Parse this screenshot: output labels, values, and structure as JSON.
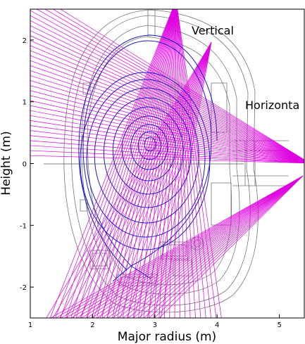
{
  "figure": {
    "xlabel": "Major radius (m)",
    "ylabel": "Height (m)",
    "xticks": [
      "1",
      "2",
      "3",
      "4",
      "5"
    ],
    "yticks": [
      "2",
      "1",
      "0",
      "-1",
      "-2"
    ],
    "labels": {
      "vertical": "Vertical",
      "horizontal": "Horizonta"
    },
    "xlim": [
      1.0,
      5.4
    ],
    "ylim": [
      -2.5,
      2.5
    ],
    "colors": {
      "chords": "#e000e0",
      "flux": "#1a1acc",
      "vessel": "#777777",
      "axes": "#000000"
    }
  }
}
